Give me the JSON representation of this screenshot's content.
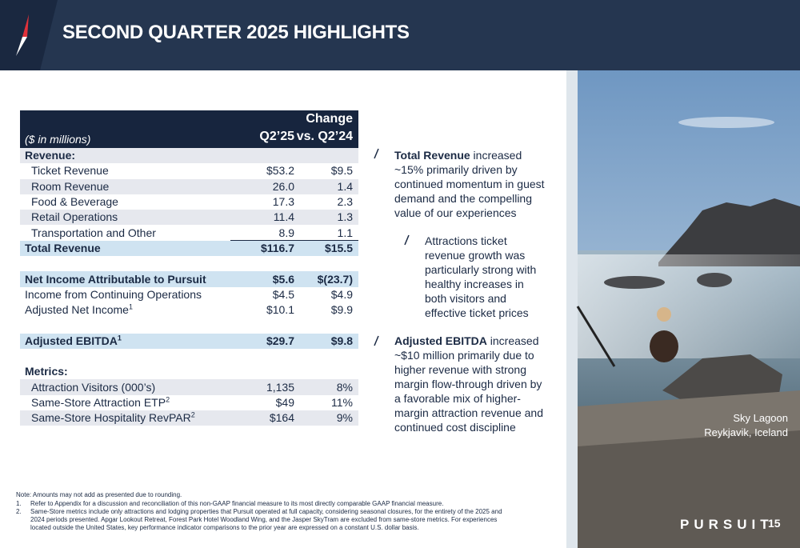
{
  "header": {
    "title": "SECOND QUARTER 2025 HIGHLIGHTS"
  },
  "table": {
    "header": {
      "label": "($ in millions)",
      "q2": "Q2’25",
      "change_line1": "Change",
      "change_line2": "vs. Q2’24"
    },
    "rows": [
      {
        "label": "Revenue:"
      },
      {
        "label": "Ticket Revenue",
        "q2": "$53.2",
        "change": "$9.5"
      },
      {
        "label": "Room Revenue",
        "q2": "26.0",
        "change": "1.4"
      },
      {
        "label": "Food & Beverage",
        "q2": "17.3",
        "change": "2.3"
      },
      {
        "label": "Retail Operations",
        "q2": "11.4",
        "change": "1.3"
      },
      {
        "label": "Transportation and Other",
        "q2": "8.9",
        "change": "1.1"
      },
      {
        "label": "Total Revenue",
        "q2": "$116.7",
        "change": "$15.5"
      },
      {
        "label": "Net Income Attributable to Pursuit",
        "q2": "$5.6",
        "change": "$(23.7)"
      },
      {
        "label": "Income from Continuing Operations",
        "q2": "$4.5",
        "change": "$4.9"
      },
      {
        "label": "Adjusted Net Income",
        "note": "1",
        "q2": "$10.1",
        "change": "$9.9"
      },
      {
        "label": "Adjusted EBITDA",
        "note": "1",
        "q2": "$29.7",
        "change": "$9.8"
      },
      {
        "label": "Metrics:"
      },
      {
        "label": "Attraction Visitors (000’s)",
        "q2": "1,135",
        "change": "8%"
      },
      {
        "label": "Same-Store Attraction ETP",
        "note": "2",
        "q2": "$49",
        "change": "11%"
      },
      {
        "label": "Same-Store Hospitality RevPAR",
        "note": "2",
        "q2": "$164",
        "change": "9%"
      }
    ]
  },
  "bullets": [
    {
      "bold": "Total Revenue",
      "text": " increased ~15% primarily driven by continued momentum in guest demand and the compelling value of our experiences"
    },
    {
      "text": "Attractions ticket revenue growth was particularly strong with healthy increases in both visitors and effective ticket prices"
    },
    {
      "bold": "Adjusted EBITDA",
      "text": " increased ~$10 million primarily due to higher revenue with strong margin flow-through driven by a favorable mix of higher-margin attraction revenue and continued cost discipline"
    }
  ],
  "photo": {
    "caption_line1": "Sky Lagoon",
    "caption_line2": "Reykjavik, Iceland"
  },
  "footnotes": {
    "note": "Note: Amounts may not add as presented due to rounding.",
    "items": [
      {
        "number": "1.",
        "text": "Refer to Appendix for a discussion and reconciliation of this non-GAAP financial measure to its most directly comparable GAAP financial measure."
      },
      {
        "number": "2.",
        "text": "Same-Store metrics include only attractions and lodging properties that Pursuit operated at full capacity, considering seasonal closures, for the entirety of the 2025 and 2024 periods presented. Apgar Lookout Retreat, Forest Park Hotel Woodland Wing, and the Jasper SkyTram are excluded from same-store metrics. For experiences located outside the United States, key performance indicator comparisons to the prior year are expressed on a constant U.S. dollar basis."
      }
    ]
  },
  "footer": {
    "logo": "PURSUIT",
    "page": "15"
  }
}
